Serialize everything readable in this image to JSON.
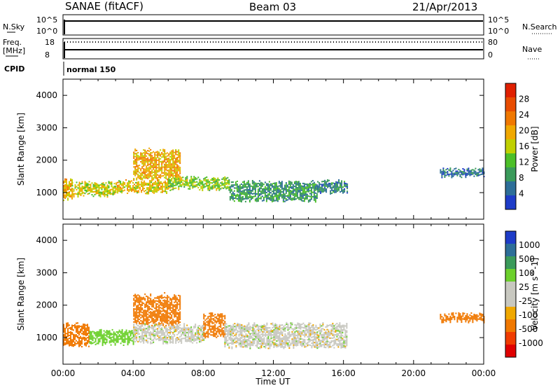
{
  "header": {
    "station": "SANAE (fitACF)",
    "beam": "Beam 03",
    "date": "21/Apr/2013"
  },
  "top_panels": {
    "nsky_label": "N.Sky",
    "nsky_ticks": [
      "10^5",
      "10^0"
    ],
    "nsearch_label": "N.Search",
    "nsearch_ticks": [
      "10^5",
      "10^0"
    ],
    "freq_label_1": "Freq.",
    "freq_label_2": "[MHz]",
    "freq_ticks": [
      "18",
      "8"
    ],
    "nave_label": "Nave",
    "nave_ticks": [
      "80",
      "0"
    ],
    "cpid_label": "CPID",
    "cpid_value": "normal 150"
  },
  "colors": {
    "power_scale": [
      "#1e3cc8",
      "#2d6e98",
      "#3a9a5a",
      "#4cbf28",
      "#c0d000",
      "#f0a800",
      "#f07800",
      "#e84c00",
      "#e02000"
    ],
    "velocity_scale": [
      "#e00000",
      "#f03c00",
      "#f07800",
      "#f0a800",
      "#c8c8c0",
      "#c8c8c0",
      "#6cd02c",
      "#3a9a5a",
      "#2d6e98",
      "#1e3cc8"
    ]
  },
  "chart_data": [
    {
      "type": "heatmap",
      "name": "power",
      "xlabel": "Time UT",
      "ylabel": "Slant Range [km]",
      "x_range_hours": [
        0,
        24
      ],
      "ylim": [
        180,
        4500
      ],
      "yticks": [
        1000,
        2000,
        3000,
        4000
      ],
      "colorbar": {
        "label": "Power [dB]",
        "ticks": [
          "4",
          "8",
          "12",
          "16",
          "20",
          "24",
          "28"
        ],
        "range": [
          0,
          32
        ]
      },
      "bands": [
        {
          "t_start": 0.0,
          "t_end": 0.5,
          "r_min": 800,
          "r_max": 1400,
          "dB": 20
        },
        {
          "t_start": 0.5,
          "t_end": 3.0,
          "r_min": 900,
          "r_max": 1300,
          "dB": 16
        },
        {
          "t_start": 3.0,
          "t_end": 6.0,
          "r_min": 1000,
          "r_max": 1350,
          "dB": 18
        },
        {
          "t_start": 4.0,
          "t_end": 6.7,
          "r_min": 1400,
          "r_max": 2300,
          "dB": 20
        },
        {
          "t_start": 6.0,
          "t_end": 9.5,
          "r_min": 1100,
          "r_max": 1450,
          "dB": 14
        },
        {
          "t_start": 9.5,
          "t_end": 14.5,
          "r_min": 750,
          "r_max": 1300,
          "dB": 8
        },
        {
          "t_start": 14.5,
          "t_end": 16.2,
          "r_min": 1000,
          "r_max": 1350,
          "dB": 6
        },
        {
          "t_start": 21.5,
          "t_end": 24.0,
          "r_min": 1500,
          "r_max": 1700,
          "dB": 4
        }
      ]
    },
    {
      "type": "heatmap",
      "name": "velocity",
      "xlabel": "Time UT",
      "ylabel": "Slant Range [km]",
      "x_range_hours": [
        0,
        24
      ],
      "xticks": [
        "00:00",
        "04:00",
        "08:00",
        "12:00",
        "16:00",
        "20:00",
        "00:00"
      ],
      "ylim": [
        180,
        4500
      ],
      "yticks": [
        1000,
        2000,
        3000,
        4000
      ],
      "colorbar": {
        "label": "Velocity [m s^-1]",
        "ticks": [
          "1000",
          "500",
          "100",
          "25",
          "-25",
          "-100",
          "-500",
          "-1000"
        ]
      },
      "bands": [
        {
          "t_start": 0.0,
          "t_end": 1.5,
          "r_min": 750,
          "r_max": 1400,
          "v": -300
        },
        {
          "t_start": 1.5,
          "t_end": 4.0,
          "r_min": 800,
          "r_max": 1200,
          "v": 60
        },
        {
          "t_start": 4.0,
          "t_end": 6.7,
          "r_min": 1400,
          "r_max": 2300,
          "v": -150
        },
        {
          "t_start": 4.0,
          "t_end": 8.0,
          "r_min": 850,
          "r_max": 1350,
          "v": 0
        },
        {
          "t_start": 8.0,
          "t_end": 9.2,
          "r_min": 1000,
          "r_max": 1700,
          "v": -120
        },
        {
          "t_start": 9.2,
          "t_end": 16.2,
          "r_min": 700,
          "r_max": 1400,
          "v": 0
        },
        {
          "t_start": 21.5,
          "t_end": 24.0,
          "r_min": 1500,
          "r_max": 1700,
          "v": -100
        }
      ]
    }
  ]
}
